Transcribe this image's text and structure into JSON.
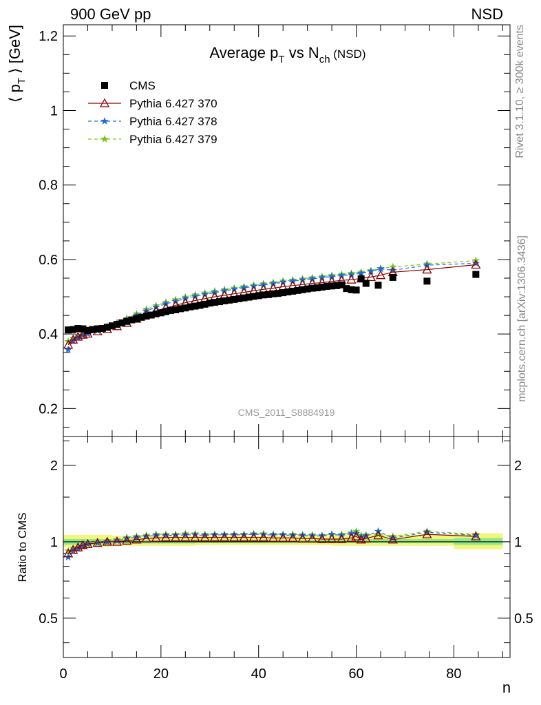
{
  "header": {
    "left_label": "900 GeV pp",
    "right_label": "NSD"
  },
  "side_notes": {
    "rivet": "Rivet 3.1.10, ≥ 300k events",
    "mcplots": "mcplots.cern.ch [arXiv:1306.3436]"
  },
  "analysis_label": "CMS_2011_S8884919",
  "chart_data": [
    {
      "type": "scatter",
      "panel": "main",
      "title_parts": {
        "a": "Average p",
        "a_sub": "T",
        "b": " vs N",
        "b_sub": "ch",
        "c": " (NSD)"
      },
      "ylabel_parts": {
        "pre": "⟨ p",
        "sub": "T",
        "post": " ⟩ [GeV]"
      },
      "xlabel": "n",
      "xlim": [
        0,
        91.5
      ],
      "ylim": [
        0.125,
        1.23
      ],
      "yticks": [
        0.2,
        0.4,
        0.6,
        0.8,
        1.0,
        1.2
      ],
      "ytick_labels": [
        "0.2",
        "0.4",
        "0.6",
        "0.8",
        "1",
        "1.2"
      ],
      "legend_position": "top-left",
      "legend": [
        "CMS",
        "Pythia 6.427 370",
        "Pythia 6.427 378",
        "Pythia 6.427 379"
      ],
      "series": [
        {
          "name": "CMS",
          "color": "#000000",
          "marker": "square",
          "x": [
            1,
            2,
            3,
            4,
            5,
            6,
            7,
            8,
            9,
            10,
            11,
            12,
            13,
            14,
            15,
            16,
            17,
            18,
            19,
            20,
            21,
            22,
            23,
            24,
            25,
            26,
            27,
            28,
            29,
            30,
            31,
            32,
            33,
            34,
            35,
            36,
            37,
            38,
            39,
            40,
            41,
            42,
            43,
            44,
            45,
            46,
            47,
            48,
            49,
            50,
            51,
            52,
            53,
            54,
            55,
            56,
            57,
            58,
            59,
            60,
            61,
            62,
            64.5,
            67.5,
            74.5,
            84.5
          ],
          "y": [
            0.411,
            0.412,
            0.415,
            0.414,
            0.41,
            0.412,
            0.414,
            0.415,
            0.418,
            0.422,
            0.426,
            0.43,
            0.434,
            0.438,
            0.441,
            0.445,
            0.448,
            0.451,
            0.454,
            0.457,
            0.46,
            0.463,
            0.465,
            0.468,
            0.47,
            0.473,
            0.475,
            0.477,
            0.48,
            0.483,
            0.485,
            0.487,
            0.489,
            0.491,
            0.493,
            0.495,
            0.497,
            0.499,
            0.501,
            0.503,
            0.505,
            0.506,
            0.508,
            0.509,
            0.511,
            0.513,
            0.515,
            0.517,
            0.519,
            0.521,
            0.523,
            0.524,
            0.526,
            0.528,
            0.529,
            0.53,
            0.532,
            0.522,
            0.519,
            0.518,
            0.548,
            0.536,
            0.531,
            0.552,
            0.542,
            0.56
          ]
        },
        {
          "name": "Pythia 6.427 370",
          "color": "#8b0000",
          "marker": "triangle-open",
          "line": "solid",
          "x": [
            1,
            2,
            3,
            4,
            5,
            7,
            9,
            11,
            13,
            15,
            17,
            19,
            21,
            23,
            25,
            27,
            29,
            31,
            33,
            35,
            37,
            39,
            41,
            43,
            45,
            47,
            49,
            51,
            53,
            55,
            57,
            59,
            61,
            63,
            65,
            67.5,
            74.5,
            84.5
          ],
          "y": [
            0.371,
            0.385,
            0.393,
            0.398,
            0.401,
            0.407,
            0.413,
            0.421,
            0.43,
            0.441,
            0.452,
            0.462,
            0.47,
            0.477,
            0.484,
            0.49,
            0.495,
            0.5,
            0.504,
            0.508,
            0.512,
            0.516,
            0.52,
            0.523,
            0.527,
            0.53,
            0.533,
            0.536,
            0.538,
            0.541,
            0.544,
            0.546,
            0.549,
            0.553,
            0.558,
            0.566,
            0.573,
            0.586
          ]
        },
        {
          "name": "Pythia 6.427 378",
          "color": "#1e6ed6",
          "marker": "star",
          "line": "dashed",
          "x": [
            1,
            2,
            3,
            4,
            5,
            7,
            9,
            11,
            13,
            15,
            17,
            19,
            21,
            23,
            25,
            27,
            29,
            31,
            33,
            35,
            37,
            39,
            41,
            43,
            45,
            47,
            49,
            51,
            53,
            55,
            57,
            59,
            61,
            63,
            65,
            67.5,
            74.5,
            84.5
          ],
          "y": [
            0.358,
            0.381,
            0.39,
            0.397,
            0.401,
            0.409,
            0.417,
            0.427,
            0.438,
            0.45,
            0.462,
            0.472,
            0.481,
            0.488,
            0.495,
            0.501,
            0.506,
            0.511,
            0.516,
            0.52,
            0.524,
            0.528,
            0.532,
            0.535,
            0.539,
            0.542,
            0.545,
            0.548,
            0.551,
            0.554,
            0.557,
            0.559,
            0.563,
            0.568,
            0.575,
            0.571,
            0.585,
            0.59
          ]
        },
        {
          "name": "Pythia 6.427 379",
          "color": "#7ac41e",
          "marker": "star",
          "line": "dashed",
          "x": [
            1,
            2,
            3,
            4,
            5,
            7,
            9,
            11,
            13,
            15,
            17,
            19,
            21,
            23,
            25,
            27,
            29,
            31,
            33,
            35,
            37,
            39,
            41,
            43,
            45,
            47,
            49,
            51,
            53,
            55,
            57,
            59,
            61,
            63,
            65,
            67.5,
            74.5,
            84.5
          ],
          "y": [
            0.38,
            0.388,
            0.394,
            0.4,
            0.404,
            0.413,
            0.421,
            0.431,
            0.442,
            0.454,
            0.466,
            0.476,
            0.485,
            0.492,
            0.499,
            0.505,
            0.51,
            0.515,
            0.519,
            0.523,
            0.527,
            0.531,
            0.535,
            0.538,
            0.542,
            0.545,
            0.548,
            0.551,
            0.554,
            0.557,
            0.56,
            0.563,
            0.566,
            0.57,
            0.576,
            0.58,
            0.588,
            0.597
          ]
        }
      ]
    },
    {
      "type": "scatter",
      "panel": "ratio",
      "ylabel": "Ratio to CMS",
      "xlabel": "n",
      "xlim": [
        0,
        91.5
      ],
      "ylim": [
        0.35,
        2.6
      ],
      "ylog": true,
      "yticks": [
        0.5,
        1,
        2
      ],
      "ytick_labels": [
        "0.5",
        "1",
        "2"
      ],
      "xticks": [
        0,
        20,
        40,
        60,
        80
      ],
      "xtick_labels": [
        "0",
        "20",
        "40",
        "60",
        "80"
      ],
      "band": {
        "x_edges": [
          0,
          10,
          27,
          55,
          80,
          90
        ],
        "green_lo": [
          0.975,
          0.985,
          0.988,
          0.988,
          0.972
        ],
        "green_hi": [
          1.025,
          1.02,
          1.02,
          1.025,
          1.035
        ],
        "yellow_lo": [
          0.955,
          0.965,
          0.97,
          0.965,
          0.935
        ],
        "yellow_hi": [
          1.065,
          1.055,
          1.055,
          1.065,
          1.08
        ],
        "green_color": "#8ee88e",
        "yellow_color": "#f5f57a"
      },
      "series": [
        {
          "name": "Pythia 6.427 370",
          "color": "#8b0000",
          "marker": "triangle-open",
          "line": "solid",
          "x": [
            1,
            2,
            3,
            4,
            5,
            7,
            9,
            11,
            13,
            15,
            17,
            19,
            21,
            23,
            25,
            27,
            29,
            31,
            33,
            35,
            37,
            39,
            41,
            43,
            45,
            47,
            49,
            51,
            53,
            55,
            57,
            59,
            60,
            61,
            62,
            64.5,
            67.5,
            74.5,
            84.5
          ],
          "y": [
            0.9,
            0.93,
            0.95,
            0.97,
            0.98,
            0.99,
            1.0,
            1.0,
            1.01,
            1.02,
            1.03,
            1.035,
            1.04,
            1.04,
            1.04,
            1.04,
            1.04,
            1.04,
            1.04,
            1.04,
            1.04,
            1.04,
            1.04,
            1.035,
            1.035,
            1.035,
            1.03,
            1.03,
            1.025,
            1.025,
            1.025,
            1.035,
            1.05,
            1.02,
            1.03,
            1.06,
            1.02,
            1.07,
            1.05
          ]
        },
        {
          "name": "Pythia 6.427 378",
          "color": "#1e6ed6",
          "marker": "star",
          "line": "dashed",
          "x": [
            1,
            2,
            3,
            4,
            5,
            7,
            9,
            11,
            13,
            15,
            17,
            19,
            21,
            23,
            25,
            27,
            29,
            31,
            33,
            35,
            37,
            39,
            41,
            43,
            45,
            47,
            49,
            51,
            53,
            55,
            57,
            59,
            60,
            61,
            62,
            64.5,
            67.5,
            74.5,
            84.5
          ],
          "y": [
            0.87,
            0.92,
            0.94,
            0.96,
            0.98,
            0.99,
            1.0,
            1.01,
            1.03,
            1.04,
            1.05,
            1.06,
            1.06,
            1.06,
            1.065,
            1.065,
            1.06,
            1.065,
            1.065,
            1.065,
            1.065,
            1.07,
            1.065,
            1.065,
            1.065,
            1.06,
            1.06,
            1.055,
            1.055,
            1.07,
            1.06,
            1.075,
            1.08,
            1.045,
            1.055,
            1.1,
            1.035,
            1.09,
            1.06
          ]
        },
        {
          "name": "Pythia 6.427 379",
          "color": "#7ac41e",
          "marker": "star",
          "line": "dashed",
          "x": [
            1,
            2,
            3,
            4,
            5,
            7,
            9,
            11,
            13,
            15,
            17,
            19,
            21,
            23,
            25,
            27,
            29,
            31,
            33,
            35,
            37,
            39,
            41,
            43,
            45,
            47,
            49,
            51,
            53,
            55,
            57,
            59,
            60,
            61,
            62,
            64.5,
            67.5,
            74.5,
            84.5
          ],
          "y": [
            0.92,
            0.94,
            0.95,
            0.97,
            0.99,
            1.0,
            1.01,
            1.02,
            1.04,
            1.05,
            1.06,
            1.07,
            1.07,
            1.07,
            1.075,
            1.075,
            1.07,
            1.07,
            1.07,
            1.07,
            1.07,
            1.075,
            1.075,
            1.07,
            1.07,
            1.07,
            1.065,
            1.065,
            1.06,
            1.07,
            1.07,
            1.085,
            1.1,
            1.06,
            1.065,
            1.07,
            1.05,
            1.1,
            1.07
          ]
        }
      ]
    }
  ]
}
